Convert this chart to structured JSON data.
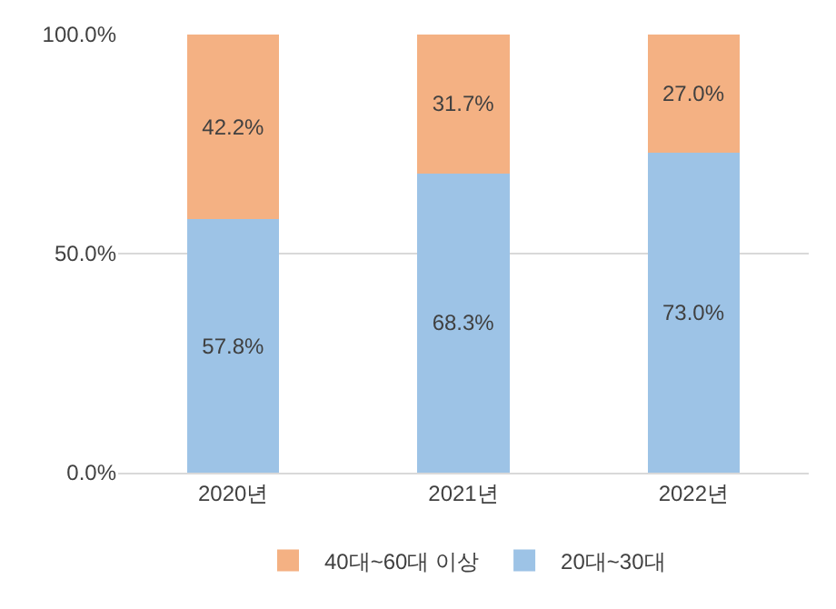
{
  "chart_data": {
    "type": "bar",
    "stacked": true,
    "categories": [
      "2020년",
      "2021년",
      "2022년"
    ],
    "series": [
      {
        "name": "20대~30대",
        "color": "#9dc3e6",
        "values": [
          57.8,
          68.3,
          73.0
        ],
        "value_labels": [
          "57.8%",
          "68.3%",
          "73.0%"
        ]
      },
      {
        "name": "40대~60대 이상",
        "color": "#f4b183",
        "values": [
          42.2,
          31.7,
          27.0
        ],
        "value_labels": [
          "42.2%",
          "31.7%",
          "27.0%"
        ]
      }
    ],
    "ylim": [
      0,
      100
    ],
    "yticks": [
      {
        "value": 0,
        "label": "0.0%"
      },
      {
        "value": 50,
        "label": "50.0%"
      },
      {
        "value": 100,
        "label": "100.0%"
      }
    ],
    "grid": "y",
    "legend": "bottom"
  }
}
